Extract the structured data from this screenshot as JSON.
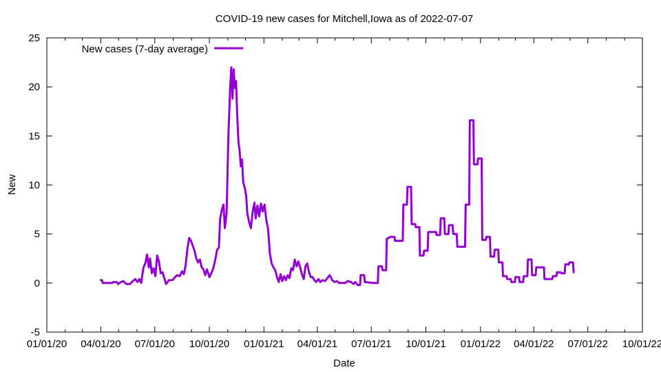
{
  "chart_data": {
    "type": "line",
    "title": "COVID-19 new cases for Mitchell,Iowa as of 2022-07-07",
    "xlabel": "Date",
    "ylabel": "New",
    "xlim": [
      "2020-01-01",
      "2022-10-01"
    ],
    "ylim": [
      -5,
      25
    ],
    "x_ticks": [
      "01/01/20",
      "04/01/20",
      "07/01/20",
      "10/01/20",
      "01/01/21",
      "04/01/21",
      "07/01/21",
      "10/01/21",
      "01/01/22",
      "04/01/22",
      "07/01/22",
      "10/01/22"
    ],
    "y_ticks": [
      -5,
      0,
      5,
      10,
      15,
      20,
      25
    ],
    "legend_position": "top-left",
    "series": [
      {
        "name": "New cases (7-day average)",
        "color": "#9400d3",
        "points": [
          [
            "2020-04-01",
            0.3
          ],
          [
            "2020-04-03",
            0.3
          ],
          [
            "2020-04-04",
            0.0
          ],
          [
            "2020-04-20",
            0.0
          ],
          [
            "2020-04-22",
            0.1
          ],
          [
            "2020-04-28",
            0.1
          ],
          [
            "2020-04-30",
            -0.1
          ],
          [
            "2020-05-05",
            0.1
          ],
          [
            "2020-05-09",
            0.2
          ],
          [
            "2020-05-14",
            -0.1
          ],
          [
            "2020-05-20",
            -0.1
          ],
          [
            "2020-05-25",
            0.2
          ],
          [
            "2020-05-29",
            0.4
          ],
          [
            "2020-06-02",
            0.1
          ],
          [
            "2020-06-05",
            0.4
          ],
          [
            "2020-06-08",
            0.0
          ],
          [
            "2020-06-12",
            1.6
          ],
          [
            "2020-06-15",
            2.0
          ],
          [
            "2020-06-18",
            2.9
          ],
          [
            "2020-06-21",
            1.6
          ],
          [
            "2020-06-23",
            2.5
          ],
          [
            "2020-06-26",
            1.0
          ],
          [
            "2020-06-29",
            1.5
          ],
          [
            "2020-07-02",
            0.7
          ],
          [
            "2020-07-05",
            2.8
          ],
          [
            "2020-07-08",
            2.2
          ],
          [
            "2020-07-11",
            1.0
          ],
          [
            "2020-07-14",
            1.1
          ],
          [
            "2020-07-17",
            0.5
          ],
          [
            "2020-07-20",
            -0.1
          ],
          [
            "2020-07-25",
            0.3
          ],
          [
            "2020-07-31",
            0.3
          ],
          [
            "2020-08-04",
            0.6
          ],
          [
            "2020-08-08",
            0.8
          ],
          [
            "2020-08-12",
            0.7
          ],
          [
            "2020-08-16",
            1.2
          ],
          [
            "2020-08-19",
            0.9
          ],
          [
            "2020-08-22",
            1.8
          ],
          [
            "2020-08-25",
            3.5
          ],
          [
            "2020-08-28",
            4.6
          ],
          [
            "2020-08-31",
            4.3
          ],
          [
            "2020-09-03",
            3.8
          ],
          [
            "2020-09-06",
            3.3
          ],
          [
            "2020-09-09",
            2.5
          ],
          [
            "2020-09-12",
            2.1
          ],
          [
            "2020-09-15",
            2.4
          ],
          [
            "2020-09-18",
            1.6
          ],
          [
            "2020-09-21",
            1.4
          ],
          [
            "2020-09-24",
            0.8
          ],
          [
            "2020-09-27",
            1.4
          ],
          [
            "2020-10-01",
            0.6
          ],
          [
            "2020-10-05",
            1.1
          ],
          [
            "2020-10-08",
            1.6
          ],
          [
            "2020-10-11",
            2.4
          ],
          [
            "2020-10-14",
            3.4
          ],
          [
            "2020-10-17",
            3.6
          ],
          [
            "2020-10-19",
            6.5
          ],
          [
            "2020-10-22",
            7.5
          ],
          [
            "2020-10-25",
            8.0
          ],
          [
            "2020-10-27",
            5.6
          ],
          [
            "2020-10-30",
            7.1
          ],
          [
            "2020-11-02",
            14.8
          ],
          [
            "2020-11-05",
            19.8
          ],
          [
            "2020-11-07",
            22.0
          ],
          [
            "2020-11-09",
            18.8
          ],
          [
            "2020-11-11",
            21.8
          ],
          [
            "2020-11-13",
            19.9
          ],
          [
            "2020-11-15",
            20.6
          ],
          [
            "2020-11-17",
            17.0
          ],
          [
            "2020-11-19",
            14.4
          ],
          [
            "2020-11-21",
            13.5
          ],
          [
            "2020-11-23",
            11.9
          ],
          [
            "2020-11-25",
            12.6
          ],
          [
            "2020-11-27",
            10.3
          ],
          [
            "2020-11-30",
            9.6
          ],
          [
            "2020-12-02",
            8.9
          ],
          [
            "2020-12-04",
            7.1
          ],
          [
            "2020-12-07",
            6.2
          ],
          [
            "2020-12-10",
            5.6
          ],
          [
            "2020-12-13",
            7.3
          ],
          [
            "2020-12-16",
            8.2
          ],
          [
            "2020-12-18",
            6.6
          ],
          [
            "2020-12-21",
            7.9
          ],
          [
            "2020-12-24",
            6.8
          ],
          [
            "2020-12-27",
            8.1
          ],
          [
            "2020-12-30",
            7.3
          ],
          [
            "2021-01-02",
            8.0
          ],
          [
            "2021-01-05",
            6.4
          ],
          [
            "2021-01-08",
            5.5
          ],
          [
            "2021-01-11",
            3.0
          ],
          [
            "2021-01-14",
            2.0
          ],
          [
            "2021-01-17",
            1.6
          ],
          [
            "2021-01-20",
            1.3
          ],
          [
            "2021-01-23",
            0.6
          ],
          [
            "2021-01-26",
            0.1
          ],
          [
            "2021-01-29",
            0.9
          ],
          [
            "2021-02-01",
            0.2
          ],
          [
            "2021-02-04",
            0.7
          ],
          [
            "2021-02-07",
            0.3
          ],
          [
            "2021-02-10",
            0.8
          ],
          [
            "2021-02-13",
            0.5
          ],
          [
            "2021-02-16",
            1.5
          ],
          [
            "2021-02-19",
            1.3
          ],
          [
            "2021-02-22",
            2.4
          ],
          [
            "2021-02-25",
            1.7
          ],
          [
            "2021-02-28",
            2.2
          ],
          [
            "2021-03-03",
            1.6
          ],
          [
            "2021-03-06",
            0.9
          ],
          [
            "2021-03-09",
            0.4
          ],
          [
            "2021-03-12",
            1.7
          ],
          [
            "2021-03-15",
            2.0
          ],
          [
            "2021-03-18",
            1.1
          ],
          [
            "2021-03-21",
            0.6
          ],
          [
            "2021-03-24",
            0.6
          ],
          [
            "2021-03-27",
            0.3
          ],
          [
            "2021-03-30",
            0.1
          ],
          [
            "2021-04-03",
            0.4
          ],
          [
            "2021-04-06",
            0.1
          ],
          [
            "2021-04-10",
            0.3
          ],
          [
            "2021-04-14",
            0.2
          ],
          [
            "2021-04-18",
            0.5
          ],
          [
            "2021-04-22",
            0.8
          ],
          [
            "2021-04-26",
            0.3
          ],
          [
            "2021-04-30",
            0.1
          ],
          [
            "2021-05-04",
            0.2
          ],
          [
            "2021-05-08",
            0.0
          ],
          [
            "2021-05-18",
            0.0
          ],
          [
            "2021-05-22",
            0.2
          ],
          [
            "2021-05-28",
            0.1
          ],
          [
            "2021-06-01",
            -0.1
          ],
          [
            "2021-06-04",
            0.1
          ],
          [
            "2021-06-08",
            -0.2
          ],
          [
            "2021-06-12",
            -0.2
          ],
          [
            "2021-06-13",
            0.8
          ],
          [
            "2021-06-19",
            0.8
          ],
          [
            "2021-06-20",
            0.1
          ],
          [
            "2021-07-04",
            0.0
          ],
          [
            "2021-07-12",
            0.0
          ],
          [
            "2021-07-13",
            1.7
          ],
          [
            "2021-07-19",
            1.7
          ],
          [
            "2021-07-20",
            1.3
          ],
          [
            "2021-07-26",
            1.3
          ],
          [
            "2021-07-27",
            4.5
          ],
          [
            "2021-08-02",
            4.7
          ],
          [
            "2021-08-09",
            4.7
          ],
          [
            "2021-08-10",
            4.3
          ],
          [
            "2021-08-23",
            4.3
          ],
          [
            "2021-08-24",
            8.0
          ],
          [
            "2021-08-30",
            8.0
          ],
          [
            "2021-08-31",
            9.8
          ],
          [
            "2021-09-06",
            9.8
          ],
          [
            "2021-09-07",
            6.0
          ],
          [
            "2021-09-13",
            6.0
          ],
          [
            "2021-09-14",
            5.7
          ],
          [
            "2021-09-20",
            5.7
          ],
          [
            "2021-09-21",
            2.8
          ],
          [
            "2021-09-27",
            2.8
          ],
          [
            "2021-09-28",
            3.3
          ],
          [
            "2021-10-04",
            3.3
          ],
          [
            "2021-10-05",
            5.2
          ],
          [
            "2021-10-18",
            5.2
          ],
          [
            "2021-10-19",
            4.9
          ],
          [
            "2021-10-25",
            4.9
          ],
          [
            "2021-10-26",
            6.6
          ],
          [
            "2021-11-01",
            6.6
          ],
          [
            "2021-11-02",
            5.0
          ],
          [
            "2021-11-08",
            5.0
          ],
          [
            "2021-11-09",
            5.9
          ],
          [
            "2021-11-15",
            5.9
          ],
          [
            "2021-11-16",
            5.0
          ],
          [
            "2021-11-22",
            5.0
          ],
          [
            "2021-11-23",
            3.7
          ],
          [
            "2021-12-06",
            3.7
          ],
          [
            "2021-12-07",
            8.0
          ],
          [
            "2021-12-13",
            8.0
          ],
          [
            "2021-12-14",
            16.6
          ],
          [
            "2021-12-20",
            16.6
          ],
          [
            "2021-12-21",
            12.1
          ],
          [
            "2021-12-27",
            12.1
          ],
          [
            "2021-12-28",
            12.7
          ],
          [
            "2022-01-03",
            12.7
          ],
          [
            "2022-01-04",
            4.4
          ],
          [
            "2022-01-10",
            4.4
          ],
          [
            "2022-01-11",
            4.7
          ],
          [
            "2022-01-17",
            4.7
          ],
          [
            "2022-01-18",
            2.7
          ],
          [
            "2022-01-24",
            2.7
          ],
          [
            "2022-01-25",
            3.4
          ],
          [
            "2022-01-31",
            3.4
          ],
          [
            "2022-02-01",
            2.1
          ],
          [
            "2022-02-07",
            2.1
          ],
          [
            "2022-02-08",
            0.7
          ],
          [
            "2022-02-14",
            0.7
          ],
          [
            "2022-02-15",
            0.4
          ],
          [
            "2022-02-21",
            0.4
          ],
          [
            "2022-02-22",
            0.1
          ],
          [
            "2022-02-28",
            0.1
          ],
          [
            "2022-03-01",
            0.6
          ],
          [
            "2022-03-07",
            0.6
          ],
          [
            "2022-03-08",
            0.1
          ],
          [
            "2022-03-14",
            0.1
          ],
          [
            "2022-03-15",
            0.7
          ],
          [
            "2022-03-21",
            0.7
          ],
          [
            "2022-03-22",
            2.4
          ],
          [
            "2022-03-28",
            2.4
          ],
          [
            "2022-03-29",
            0.8
          ],
          [
            "2022-04-04",
            0.8
          ],
          [
            "2022-04-05",
            1.6
          ],
          [
            "2022-04-18",
            1.6
          ],
          [
            "2022-04-19",
            0.4
          ],
          [
            "2022-05-02",
            0.4
          ],
          [
            "2022-05-03",
            0.7
          ],
          [
            "2022-05-09",
            0.7
          ],
          [
            "2022-05-10",
            1.1
          ],
          [
            "2022-05-16",
            1.1
          ],
          [
            "2022-05-17",
            1.0
          ],
          [
            "2022-05-23",
            1.0
          ],
          [
            "2022-05-24",
            1.9
          ],
          [
            "2022-05-30",
            1.9
          ],
          [
            "2022-05-31",
            2.1
          ],
          [
            "2022-06-06",
            2.1
          ],
          [
            "2022-06-07",
            1.1
          ]
        ]
      }
    ]
  }
}
